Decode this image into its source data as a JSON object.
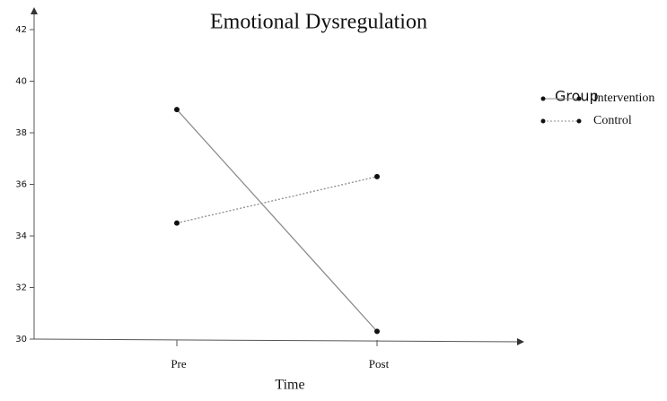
{
  "chart_data": {
    "type": "line",
    "title": "Emotional Dysregulation",
    "x_label": "Time",
    "categories": [
      "Pre",
      "Post"
    ],
    "series": [
      {
        "name": "Intervention",
        "color": "#8c8c8c",
        "line_style": "solid",
        "values": [
          38.9,
          30.3
        ]
      },
      {
        "name": "Control",
        "color": "#8c8c8c",
        "line_style": "dotted",
        "values": [
          34.5,
          36.3
        ]
      }
    ],
    "ylim": [
      30,
      42
    ],
    "yticks": [
      30,
      32,
      34,
      36,
      38,
      40,
      42
    ],
    "legend_title": "Group",
    "legend_position": "right"
  }
}
